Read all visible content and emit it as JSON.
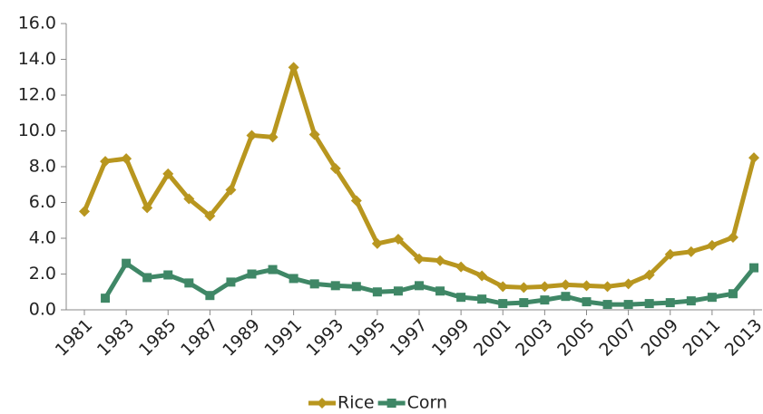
{
  "chart_data": {
    "type": "line",
    "x": [
      1981,
      1982,
      1983,
      1984,
      1985,
      1986,
      1987,
      1988,
      1989,
      1990,
      1991,
      1992,
      1993,
      1994,
      1995,
      1996,
      1997,
      1998,
      1999,
      2000,
      2001,
      2002,
      2003,
      2004,
      2005,
      2006,
      2007,
      2008,
      2009,
      2010,
      2011,
      2012,
      2013
    ],
    "xlim": [
      1981,
      2013
    ],
    "xticks": [
      1981,
      1983,
      1985,
      1987,
      1989,
      1991,
      1993,
      1995,
      1997,
      1999,
      2001,
      2003,
      2005,
      2007,
      2009,
      2011,
      2013
    ],
    "ylim": [
      0,
      16
    ],
    "yticks": [
      {
        "value": 0,
        "label": "0.0"
      },
      {
        "value": 2,
        "label": "2.0"
      },
      {
        "value": 4,
        "label": "4.0"
      },
      {
        "value": 6,
        "label": "6.0"
      },
      {
        "value": 8,
        "label": "8.0"
      },
      {
        "value": 10,
        "label": "10.0"
      },
      {
        "value": 12,
        "label": "12.0"
      },
      {
        "value": 14,
        "label": "14.0"
      },
      {
        "value": 16,
        "label": "16.0"
      }
    ],
    "grid": false,
    "legend": "bottom",
    "series": [
      {
        "name": "Rice",
        "color": "#b8961f",
        "marker": "diamond",
        "values": [
          5.5,
          8.3,
          8.45,
          5.7,
          7.6,
          6.2,
          5.25,
          6.7,
          9.75,
          9.65,
          13.55,
          9.8,
          7.9,
          6.1,
          3.7,
          3.95,
          2.85,
          2.75,
          2.4,
          1.9,
          1.3,
          1.25,
          1.3,
          1.4,
          1.35,
          1.3,
          1.45,
          1.95,
          3.1,
          3.25,
          3.6,
          4.05,
          8.5
        ]
      },
      {
        "name": "Corn",
        "color": "#3f8766",
        "marker": "square",
        "values": [
          null,
          0.65,
          2.6,
          1.8,
          1.95,
          1.5,
          0.8,
          1.55,
          2.0,
          2.25,
          1.75,
          1.45,
          1.35,
          1.3,
          1.0,
          1.05,
          1.35,
          1.05,
          0.7,
          0.6,
          0.35,
          0.4,
          0.55,
          0.75,
          0.45,
          0.3,
          0.3,
          0.35,
          0.4,
          0.5,
          0.7,
          0.9,
          2.35
        ]
      }
    ]
  }
}
